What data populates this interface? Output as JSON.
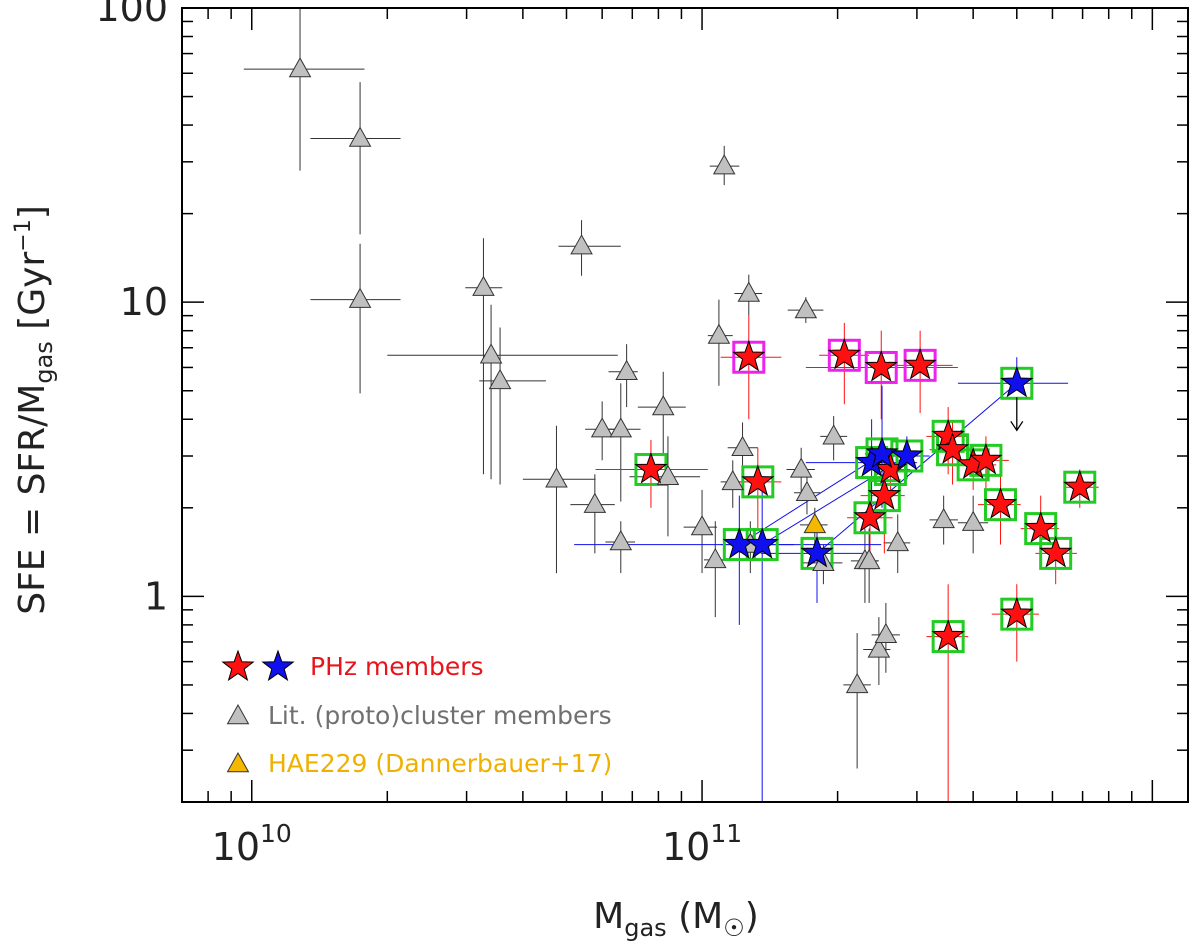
{
  "chart_data": {
    "type": "scatter",
    "x_scale": "log",
    "y_scale": "log",
    "xlim": [
      7000000000,
      1200000000000
    ],
    "ylim": [
      0.2,
      100
    ],
    "xlabel": {
      "main": "M",
      "sub": "gas",
      "unit_open": " (M",
      "unit_close": ")"
    },
    "ylabel": {
      "lhs": "SFE = SFR/M",
      "sub": "gas",
      "unit_open": " [Gyr",
      "sup": "−1",
      "unit_close": "]"
    },
    "x_ticks": [
      {
        "value": 10000000000,
        "base": "10",
        "exp": "10"
      },
      {
        "value": 100000000000,
        "base": "10",
        "exp": "11"
      }
    ],
    "y_ticks": [
      {
        "value": 1,
        "label": "1"
      },
      {
        "value": 10,
        "label": "10"
      },
      {
        "value": 100,
        "label": "100"
      }
    ],
    "legend": {
      "position": "bottom-left",
      "entries": [
        {
          "marker": "red-blue-stars",
          "label": "PHz members",
          "color": "#e8141b"
        },
        {
          "marker": "gray-triangle",
          "label": "Lit. (proto)cluster members",
          "color": "#707070"
        },
        {
          "marker": "orange-triangle",
          "label": "HAE229 (Dannerbauer+17)",
          "color": "#f0b000"
        }
      ]
    },
    "colors": {
      "phz_red": "#ff1010",
      "phz_blue": "#1010ee",
      "lit_gray": "#c0c0c0",
      "hae229": "#f5b800",
      "box_green": "#22cc22",
      "box_magenta": "#ee22ee"
    },
    "series": [
      {
        "name": "Lit. (proto)cluster members",
        "marker": "triangle",
        "points": [
          {
            "x": 12800000000,
            "y": 62,
            "xerr": [
              9600000000,
              17800000000
            ],
            "yerr": [
              28,
              100
            ]
          },
          {
            "x": 17400000000,
            "y": 36,
            "xerr": [
              13500000000,
              21400000000
            ],
            "yerr": [
              17,
              56
            ]
          },
          {
            "x": 17400000000,
            "y": 10.2,
            "xerr": [
              13500000000,
              21400000000
            ],
            "yerr": [
              4.9,
              15.8
            ]
          },
          {
            "x": 32700000000,
            "y": 11.2,
            "xerr": [
              29800000000,
              36000000000
            ],
            "yerr": [
              2.6,
              16.5
            ]
          },
          {
            "x": 34000000000,
            "y": 6.6,
            "xerr": [
              20000000000,
              65000000000
            ],
            "yerr": [
              2.5,
              9.8
            ]
          },
          {
            "x": 35600000000,
            "y": 5.4,
            "xerr": [
              32000000000,
              45000000000
            ],
            "yerr": [
              2.4,
              8.2
            ]
          },
          {
            "x": 54000000000,
            "y": 15.5,
            "xerr": [
              48000000000,
              66000000000
            ],
            "yerr": [
              12.3,
              19
            ]
          },
          {
            "x": 47500000000,
            "y": 2.5,
            "xerr": [
              40000000000,
              58000000000
            ],
            "yerr": [
              1.2,
              3.8
            ]
          },
          {
            "x": 57800000000,
            "y": 2.05,
            "xerr": [
              51000000000,
              64000000000
            ],
            "yerr": [
              1.4,
              2.6
            ]
          },
          {
            "x": 60000000000,
            "y": 3.7,
            "xerr": [
              55000000000,
              66000000000
            ],
            "yerr": [
              2.9,
              4.6
            ]
          },
          {
            "x": 66000000000,
            "y": 3.7,
            "xerr": [
              60000000000,
              73000000000
            ],
            "yerr": [
              2.1,
              5.3
            ]
          },
          {
            "x": 68000000000,
            "y": 5.8,
            "xerr": [
              62000000000,
              72000000000
            ],
            "yerr": [
              4.4,
              7.2
            ]
          },
          {
            "x": 66000000000,
            "y": 1.53,
            "xerr": [
              61000000000,
              71000000000
            ],
            "yerr": [
              1.2,
              1.8
            ]
          },
          {
            "x": 82000000000,
            "y": 4.4,
            "xerr": [
              72000000000,
              92000000000
            ],
            "yerr": [
              3,
              5.8
            ]
          },
          {
            "x": 84000000000,
            "y": 2.55,
            "xerr": [
              69000000000,
              99000000000
            ],
            "yerr": [
              1.6,
              3.5
            ]
          },
          {
            "x": 100000000000,
            "y": 1.72,
            "xerr": [
              91000000000,
              108000000000
            ],
            "yerr": [
              1.2,
              2.3
            ]
          },
          {
            "x": 107000000000,
            "y": 1.33,
            "xerr": [
              101000000000,
              113000000000
            ],
            "yerr": [
              0.85,
              1.8
            ]
          },
          {
            "x": 112000000000,
            "y": 29,
            "xerr": [
              104000000000,
              121000000000
            ],
            "yerr": [
              25,
              34
            ]
          },
          {
            "x": 109000000000,
            "y": 7.7,
            "xerr": [
              103000000000,
              117000000000
            ],
            "yerr": [
              5.2,
              10.2
            ]
          },
          {
            "x": 127000000000,
            "y": 10.7,
            "xerr": [
              118000000000,
              136000000000
            ],
            "yerr": [
              9,
              12.4
            ]
          },
          {
            "x": 123000000000,
            "y": 3.2,
            "xerr": [
              114000000000,
              133000000000
            ],
            "yerr": [
              2.5,
              3.9
            ]
          },
          {
            "x": 117000000000,
            "y": 2.45,
            "xerr": [
              110000000000,
              125000000000
            ],
            "yerr": [
              2,
              2.9
            ]
          },
          {
            "x": 128000000000,
            "y": 1.5,
            "xerr": [
              118000000000,
              138000000000
            ],
            "yerr": [
              1.2,
              1.8
            ]
          },
          {
            "x": 170000000000,
            "y": 9.4,
            "xerr": [
              155000000000,
              186000000000
            ],
            "yerr": [
              8.5,
              10.4
            ]
          },
          {
            "x": 166000000000,
            "y": 2.7,
            "xerr": [
              154000000000,
              178000000000
            ],
            "yerr": [
              2.2,
              3.2
            ]
          },
          {
            "x": 171000000000,
            "y": 2.25,
            "xerr": [
              160000000000,
              183000000000
            ],
            "yerr": [
              1.9,
              2.6
            ]
          },
          {
            "x": 186000000000,
            "y": 1.3,
            "xerr": [
              168000000000,
              205000000000
            ],
            "yerr": [
              1.1,
              1.5
            ]
          },
          {
            "x": 196000000000,
            "y": 3.5,
            "xerr": [
              183000000000,
              210000000000
            ],
            "yerr": [
              2.9,
              4.1
            ]
          },
          {
            "x": 230000000000,
            "y": 1.32,
            "xerr": [
              214000000000,
              247000000000
            ],
            "yerr": [
              0.95,
              1.7
            ]
          },
          {
            "x": 235000000000,
            "y": 1.32,
            "xerr": [
              225000000000,
              246000000000
            ],
            "yerr": [
              0.95,
              1.7
            ]
          },
          {
            "x": 247000000000,
            "y": 0.66,
            "xerr": [
              228000000000,
              262000000000
            ],
            "yerr": [
              0.5,
              0.85
            ]
          },
          {
            "x": 256000000000,
            "y": 0.74,
            "xerr": [
              238000000000,
              275000000000
            ],
            "yerr": [
              0.55,
              0.95
            ]
          },
          {
            "x": 221000000000,
            "y": 0.5,
            "xerr": [
              206000000000,
              237000000000
            ],
            "yerr": [
              0.26,
              0.75
            ]
          },
          {
            "x": 272000000000,
            "y": 1.52,
            "xerr": [
              253000000000,
              290000000000
            ],
            "yerr": [
              1.2,
              1.9
            ]
          },
          {
            "x": 344000000000,
            "y": 1.82,
            "xerr": [
              320000000000,
              370000000000
            ],
            "yerr": [
              1.5,
              2.2
            ]
          },
          {
            "x": 400000000000,
            "y": 1.78,
            "xerr": [
              370000000000,
              432000000000
            ],
            "yerr": [
              1.4,
              2.2
            ]
          }
        ]
      },
      {
        "name": "PHz members (red)",
        "marker": "star",
        "points": [
          {
            "x": 77000000000,
            "y": 2.7,
            "xerr": [
              58000000000,
              103000000000
            ],
            "yerr": [
              2,
              3.4
            ],
            "box": "green"
          },
          {
            "x": 127000000000,
            "y": 6.5,
            "xerr": [
              110000000000,
              150000000000
            ],
            "yerr": [
              4,
              9
            ],
            "box": "magenta"
          },
          {
            "x": 133000000000,
            "y": 2.45,
            "xerr": [
              118000000000,
              150000000000
            ],
            "yerr": [
              1.7,
              3.2
            ],
            "box": "green"
          },
          {
            "x": 207000000000,
            "y": 6.6,
            "xerr": [
              182000000000,
              235000000000
            ],
            "yerr": [
              4.5,
              8.5
            ],
            "box": "magenta"
          },
          {
            "x": 250000000000,
            "y": 6,
            "xerr": [
              170000000000,
              370000000000
            ],
            "yerr": [
              4,
              8
            ],
            "box": "magenta"
          },
          {
            "x": 305000000000,
            "y": 6.1,
            "xerr": [
              255000000000,
              360000000000
            ],
            "yerr": [
              4.2,
              8
            ],
            "box": "magenta"
          },
          {
            "x": 236000000000,
            "y": 1.85,
            "xerr": [
              210000000000,
              265000000000
            ],
            "yerr": [
              1.4,
              2.3
            ],
            "box": "green"
          },
          {
            "x": 254000000000,
            "y": 2.2,
            "xerr": [
              225000000000,
              282000000000
            ],
            "yerr": [
              1.4,
              3
            ],
            "box": "green"
          },
          {
            "x": 262000000000,
            "y": 2.7,
            "xerr": [
              235000000000,
              290000000000
            ],
            "yerr": [
              2.2,
              3.2
            ],
            "box": "green"
          },
          {
            "x": 352000000000,
            "y": 3.5,
            "xerr": [
              315000000000,
              390000000000
            ],
            "yerr": [
              2.6,
              4.4
            ],
            "box": "green"
          },
          {
            "x": 360000000000,
            "y": 3.15,
            "xerr": [
              320000000000,
              400000000000
            ],
            "yerr": [
              2.4,
              3.9
            ],
            "box": "green"
          },
          {
            "x": 400000000000,
            "y": 2.8,
            "xerr": [
              360000000000,
              450000000000
            ],
            "yerr": [
              2.3,
              3.3
            ],
            "box": "green"
          },
          {
            "x": 427000000000,
            "y": 2.9,
            "xerr": [
              380000000000,
              480000000000
            ],
            "yerr": [
              2.3,
              3.5
            ],
            "box": "green"
          },
          {
            "x": 460000000000,
            "y": 2.05,
            "xerr": [
              410000000000,
              510000000000
            ],
            "yerr": [
              1.5,
              2.7
            ],
            "box": "green"
          },
          {
            "x": 352000000000,
            "y": 0.73,
            "xerr": [
              315000000000,
              390000000000
            ],
            "yerr": [
              0.2,
              1.1
            ],
            "box": "green"
          },
          {
            "x": 500000000000,
            "y": 0.87,
            "xerr": [
              440000000000,
              560000000000
            ],
            "yerr": [
              0.6,
              1.1
            ],
            "box": "green"
          },
          {
            "x": 565000000000,
            "y": 1.7,
            "xerr": [
              510000000000,
              620000000000
            ],
            "yerr": [
              1.3,
              2.2
            ],
            "box": "green"
          },
          {
            "x": 610000000000,
            "y": 1.4,
            "xerr": [
              550000000000,
              680000000000
            ],
            "yerr": [
              1.1,
              1.7
            ],
            "box": "green"
          },
          {
            "x": 690000000000,
            "y": 2.35,
            "xerr": [
              640000000000,
              760000000000
            ],
            "yerr": [
              2,
              2.7
            ],
            "box": "green"
          }
        ]
      },
      {
        "name": "PHz members (blue)",
        "marker": "star",
        "points": [
          {
            "x": 121000000000,
            "y": 1.5,
            "xerr": [
              52000000000,
              250000000000
            ],
            "yerr": [
              0.8,
              2.2
            ],
            "box": "green"
          },
          {
            "x": 136000000000,
            "y": 1.5,
            "xerr": [
              110000000000,
              160000000000
            ],
            "yerr": [
              0.2,
              2.4
            ],
            "box": "green"
          },
          {
            "x": 180000000000,
            "y": 1.4,
            "xerr": [
              135000000000,
              230000000000
            ],
            "yerr": [
              0.95,
              1.8
            ],
            "box": "green"
          },
          {
            "x": 238000000000,
            "y": 2.85,
            "xerr": [
              170000000000,
              300000000000
            ],
            "yerr": [
              1.8,
              4
            ],
            "box": "green"
          },
          {
            "x": 251000000000,
            "y": 3.05,
            "xerr": [
              230000000000,
              275000000000
            ],
            "yerr": [
              2,
              5.2
            ],
            "box": "green"
          },
          {
            "x": 285000000000,
            "y": 3,
            "xerr": [
              250000000000,
              320000000000
            ],
            "yerr": [
              2.5,
              3.5
            ],
            "box": "green"
          },
          {
            "x": 500000000000,
            "y": 5.3,
            "xerr": [
              370000000000,
              650000000000
            ],
            "yerr": [
              5.3,
              6.5
            ],
            "box": "green",
            "upper_limit": true
          }
        ]
      },
      {
        "name": "HAE229 (Dannerbauer+17)",
        "marker": "triangle",
        "points": [
          {
            "x": 178000000000,
            "y": 1.75,
            "xerr": [
              165000000000,
              190000000000
            ],
            "yerr": [
              1.45,
              2
            ]
          }
        ]
      }
    ],
    "connections": [
      {
        "from": [
          121000000000,
          1.5
        ],
        "to": [
          251000000000,
          3.05
        ]
      },
      {
        "from": [
          136000000000,
          1.5
        ],
        "to": [
          285000000000,
          3
        ]
      },
      {
        "from": [
          180000000000,
          1.4
        ],
        "to": [
          500000000000,
          5.3
        ]
      }
    ]
  }
}
